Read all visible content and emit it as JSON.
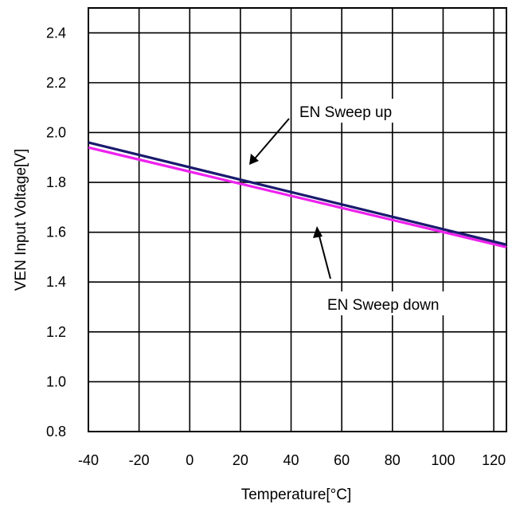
{
  "chart_data": {
    "type": "line",
    "title": "",
    "xlabel": "Temperature[°C]",
    "ylabel": "VEN Input Voltage[V]",
    "xlim": [
      -40,
      125
    ],
    "ylim": [
      0.8,
      2.5
    ],
    "x_ticks": [
      -40,
      -20,
      0,
      20,
      40,
      60,
      80,
      100,
      120
    ],
    "x_tick_labels": [
      "-40",
      "-20",
      "0",
      "20",
      "40",
      "60",
      "80",
      "100",
      "120"
    ],
    "y_ticks": [
      0.8,
      1.0,
      1.2,
      1.4,
      1.6,
      1.8,
      2.0,
      2.2,
      2.4
    ],
    "y_tick_labels": [
      "0.8",
      "1.0",
      "1.2",
      "1.4",
      "1.6",
      "1.8",
      "2.0",
      "2.2",
      "2.4"
    ],
    "grid": true,
    "series": [
      {
        "name": "EN Sweep up",
        "color": "#1a1a6e",
        "x": [
          -40,
          125
        ],
        "y": [
          1.96,
          1.55
        ]
      },
      {
        "name": "EN Sweep down",
        "color": "#ee22ee",
        "x": [
          -40,
          125
        ],
        "y": [
          1.94,
          1.54
        ]
      }
    ],
    "annotations": [
      {
        "text": "EN Sweep up",
        "series": 0
      },
      {
        "text": "EN Sweep down",
        "series": 1
      }
    ]
  }
}
